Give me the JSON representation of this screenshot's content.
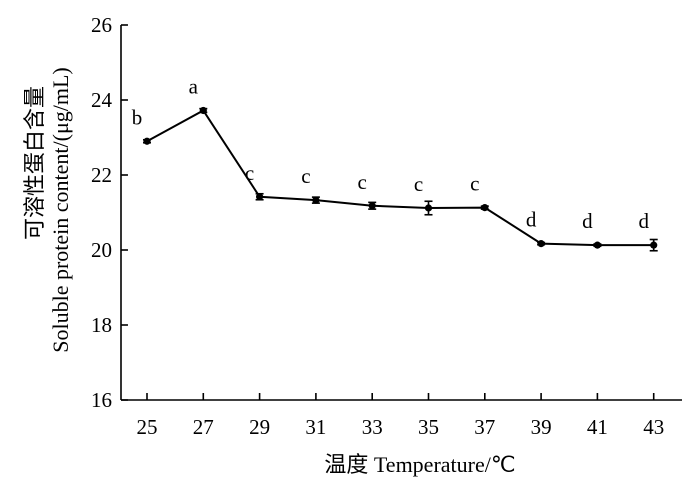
{
  "chart_data": {
    "type": "line",
    "xlabel": "温度 Temperature/℃",
    "ylabel_cn": "可溶性蛋白含量",
    "ylabel_en": "Soluble protein content/(μg/mL)",
    "x": [
      25,
      27,
      29,
      31,
      33,
      35,
      37,
      39,
      41,
      43
    ],
    "x_tick_labels": [
      "25",
      "27",
      "29",
      "31",
      "33",
      "35",
      "37",
      "39",
      "41",
      "43"
    ],
    "series": [
      {
        "values": [
          22.9,
          23.72,
          21.42,
          21.33,
          21.18,
          21.12,
          21.13,
          20.17,
          20.13,
          20.13
        ],
        "errors": [
          0.04,
          0.05,
          0.08,
          0.08,
          0.09,
          0.18,
          0.04,
          0.03,
          0.03,
          0.15
        ],
        "significance": [
          "b",
          "a",
          "c",
          "c",
          "c",
          "c",
          "c",
          "d",
          "d",
          "d"
        ]
      }
    ],
    "ylim": [
      16,
      26
    ],
    "y_ticks": [
      16,
      18,
      20,
      22,
      24,
      26
    ],
    "y_tick_labels": [
      "16",
      "18",
      "20",
      "22",
      "24",
      "26"
    ],
    "grid": false,
    "legend": "none"
  }
}
